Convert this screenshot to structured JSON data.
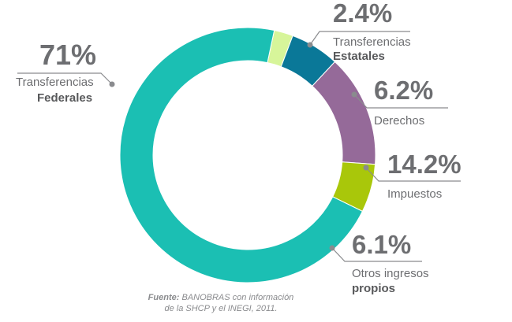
{
  "chart_data": {
    "type": "pie",
    "donut": true,
    "categories": [
      "Transferencias Federales",
      "Transferencias Estatales",
      "Derechos",
      "Impuestos",
      "Otros ingresos propios"
    ],
    "values": [
      71,
      2.4,
      6.2,
      14.2,
      6.1
    ],
    "slices": [
      {
        "pct_text": "71%",
        "label_line1": "Transferencias",
        "label_line2": "Federales",
        "color": "#1bbfb3"
      },
      {
        "pct_text": "2.4%",
        "label_line1": "Transferencias",
        "label_line2": "Estatales",
        "color": "#d7f59a"
      },
      {
        "pct_text": "6.2%",
        "label_line1": "Derechos",
        "label_line2": "",
        "color": "#0a7898"
      },
      {
        "pct_text": "14.2%",
        "label_line1": "Impuestos",
        "label_line2": "",
        "color": "#956a99"
      },
      {
        "pct_text": "6.1%",
        "label_line1": "Otros ingresos",
        "label_line2": "propios",
        "color": "#a9c70a"
      }
    ]
  },
  "source": {
    "prefix": "Fuente:",
    "line1": "BANOBRAS con información",
    "line2": "de la SHCP y el INEGI, 2011."
  }
}
